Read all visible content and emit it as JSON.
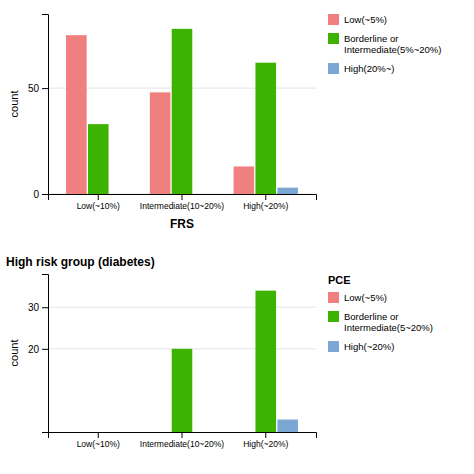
{
  "chart_data": [
    {
      "type": "bar",
      "xlabel": "FRS",
      "ylabel": "count",
      "categories": [
        "Low(~10%)",
        "Intermediate(10~20%)",
        "High(~20%)"
      ],
      "series": [
        {
          "name": "Low(~5%)",
          "color": "#F08080",
          "values": [
            75,
            48,
            13
          ]
        },
        {
          "name": "Borderline or\nIntermediate(5%~20%)",
          "color": "#3CB300",
          "values": [
            33,
            78,
            62
          ]
        },
        {
          "name": "High(20%~)",
          "color": "#7BA7D4",
          "values": [
            0,
            0,
            3
          ]
        }
      ],
      "ylim": [
        0,
        85
      ],
      "yticks": [
        0,
        50
      ],
      "grid": true,
      "legend": "right"
    },
    {
      "type": "bar",
      "title": "High risk group (diabetes)",
      "ylabel": "count",
      "legend_title": "PCE",
      "categories": [
        "Low(~10%)",
        "Intermediate(10~20%)",
        "High(~20%)"
      ],
      "series": [
        {
          "name": "Low(~5%)",
          "color": "#F08080",
          "values": [
            0,
            0,
            0
          ]
        },
        {
          "name": "Borderline or\nIntermediate(5~20%)",
          "color": "#3CB300",
          "values": [
            0,
            20,
            34
          ]
        },
        {
          "name": "High(~20%)",
          "color": "#7BA7D4",
          "values": [
            0,
            0,
            3
          ]
        }
      ],
      "ylim": [
        0,
        38
      ],
      "yticks": [
        20,
        30
      ],
      "grid": true,
      "legend": "right"
    }
  ]
}
